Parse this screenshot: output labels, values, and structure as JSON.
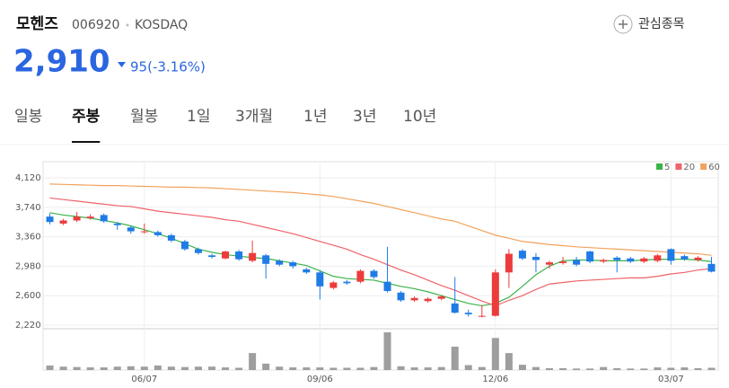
{
  "header": {
    "name": "모헨즈",
    "code": "006920",
    "market": "KOSDAQ",
    "price": "2,910",
    "change": "95(-3.16%)",
    "watch_button": "관심종목"
  },
  "tabs": {
    "items": [
      "일봉",
      "주봉",
      "월봉",
      "1일",
      "3개월",
      "1년",
      "3년",
      "10년"
    ],
    "selected": 1
  },
  "chart_data": {
    "type": "candlestick",
    "categories": [
      null,
      null,
      null,
      null,
      null,
      null,
      null,
      "06/07",
      null,
      null,
      null,
      null,
      null,
      null,
      null,
      null,
      null,
      null,
      null,
      null,
      "09/06",
      null,
      null,
      null,
      null,
      null,
      null,
      null,
      null,
      null,
      null,
      null,
      null,
      "12/06",
      null,
      null,
      null,
      null,
      null,
      null,
      null,
      null,
      null,
      null,
      null,
      null,
      "03/07",
      null,
      null,
      null
    ],
    "candles": [
      [
        3620,
        3660,
        3520,
        3550
      ],
      [
        3530,
        3590,
        3510,
        3570
      ],
      [
        3570,
        3680,
        3550,
        3620
      ],
      [
        3600,
        3650,
        3580,
        3620
      ],
      [
        3640,
        3660,
        3540,
        3560
      ],
      [
        3530,
        3550,
        3450,
        3510
      ],
      [
        3480,
        3500,
        3400,
        3430
      ],
      [
        3420,
        3530,
        3400,
        3430
      ],
      [
        3420,
        3440,
        3360,
        3380
      ],
      [
        3380,
        3400,
        3290,
        3310
      ],
      [
        3300,
        3320,
        3180,
        3200
      ],
      [
        3200,
        3220,
        3130,
        3150
      ],
      [
        3120,
        3140,
        3080,
        3100
      ],
      [
        3080,
        3180,
        3070,
        3170
      ],
      [
        3170,
        3190,
        3050,
        3070
      ],
      [
        3050,
        3310,
        3030,
        3150
      ],
      [
        3120,
        3140,
        2820,
        3010
      ],
      [
        3050,
        3070,
        2980,
        3000
      ],
      [
        3030,
        3050,
        2950,
        2980
      ],
      [
        2940,
        2960,
        2880,
        2900
      ],
      [
        2900,
        2930,
        2550,
        2720
      ],
      [
        2700,
        2790,
        2680,
        2770
      ],
      [
        2780,
        2800,
        2740,
        2760
      ],
      [
        2780,
        2940,
        2760,
        2920
      ],
      [
        2920,
        2940,
        2820,
        2840
      ],
      [
        2780,
        3230,
        2640,
        2660
      ],
      [
        2640,
        2660,
        2520,
        2540
      ],
      [
        2540,
        2590,
        2520,
        2570
      ],
      [
        2530,
        2580,
        2510,
        2560
      ],
      [
        2560,
        2610,
        2540,
        2590
      ],
      [
        2500,
        2840,
        2370,
        2380
      ],
      [
        2380,
        2420,
        2330,
        2360
      ],
      [
        2330,
        2480,
        2320,
        2340
      ],
      [
        2340,
        2940,
        2330,
        2900
      ],
      [
        2900,
        3200,
        2700,
        3140
      ],
      [
        3180,
        3200,
        3060,
        3080
      ],
      [
        3100,
        3150,
        2900,
        3060
      ],
      [
        3000,
        3050,
        2950,
        3030
      ],
      [
        3020,
        3100,
        3000,
        3040
      ],
      [
        3060,
        3100,
        2980,
        3000
      ],
      [
        3170,
        3180,
        3020,
        3040
      ],
      [
        3040,
        3080,
        3020,
        3060
      ],
      [
        3090,
        3110,
        2900,
        3060
      ],
      [
        3080,
        3100,
        3020,
        3040
      ],
      [
        3040,
        3100,
        3020,
        3080
      ],
      [
        3050,
        3140,
        3030,
        3120
      ],
      [
        3200,
        3210,
        3000,
        3050
      ],
      [
        3110,
        3130,
        3050,
        3070
      ],
      [
        3060,
        3110,
        3040,
        3090
      ],
      [
        3010,
        3100,
        2900,
        2910
      ]
    ],
    "up_color": "#ec3b3b",
    "down_color": "#1f7be6",
    "volume": [
      12,
      9,
      8,
      7,
      7,
      9,
      10,
      9,
      12,
      9,
      8,
      9,
      9,
      7,
      6,
      45,
      17,
      9,
      7,
      7,
      7,
      6,
      6,
      6,
      8,
      100,
      10,
      7,
      7,
      8,
      62,
      13,
      8,
      85,
      45,
      14,
      8,
      5,
      5,
      4,
      4,
      8,
      5,
      4,
      4,
      7,
      6,
      7,
      5,
      6
    ],
    "volume_color": "#9e9e9e",
    "vlim": [
      0,
      100
    ],
    "ylim": [
      2220,
      4120
    ],
    "yticks": [
      {
        "value": 2220,
        "label": "2,220"
      },
      {
        "value": 2600,
        "label": "2,600"
      },
      {
        "value": 2980,
        "label": "2,980"
      },
      {
        "value": 3360,
        "label": "3,360"
      },
      {
        "value": 3740,
        "label": "3,740"
      },
      {
        "value": 4120,
        "label": "4,120"
      }
    ],
    "grid": true,
    "series": [
      {
        "name": "5",
        "color": "#3cb34a",
        "values": [
          3670,
          3640,
          3620,
          3600,
          3570,
          3540,
          3500,
          3450,
          3400,
          3340,
          3270,
          3200,
          3160,
          3130,
          3110,
          3090,
          3080,
          3050,
          3020,
          2990,
          2920,
          2850,
          2820,
          2810,
          2800,
          2760,
          2720,
          2690,
          2650,
          2600,
          2550,
          2500,
          2470,
          2500,
          2580,
          2720,
          2870,
          2980,
          3050,
          3060,
          3060,
          3050,
          3050,
          3050,
          3060,
          3070,
          3070,
          3070,
          3060,
          3040
        ]
      },
      {
        "name": "20",
        "color": "#f0626a",
        "values": [
          3860,
          3840,
          3820,
          3800,
          3780,
          3760,
          3750,
          3720,
          3690,
          3670,
          3650,
          3630,
          3610,
          3580,
          3560,
          3520,
          3480,
          3440,
          3400,
          3350,
          3300,
          3250,
          3200,
          3130,
          3070,
          3000,
          2930,
          2870,
          2800,
          2730,
          2670,
          2600,
          2530,
          2470,
          2540,
          2600,
          2680,
          2750,
          2770,
          2790,
          2800,
          2810,
          2820,
          2830,
          2830,
          2850,
          2880,
          2900,
          2930,
          2950
        ]
      },
      {
        "name": "60",
        "color": "#f2a25c",
        "values": [
          4040,
          4035,
          4030,
          4025,
          4020,
          4020,
          4015,
          4010,
          4005,
          4000,
          4000,
          3995,
          3990,
          3980,
          3970,
          3960,
          3950,
          3940,
          3930,
          3915,
          3900,
          3880,
          3850,
          3820,
          3790,
          3750,
          3710,
          3670,
          3630,
          3590,
          3560,
          3500,
          3440,
          3380,
          3340,
          3300,
          3280,
          3260,
          3245,
          3230,
          3220,
          3210,
          3200,
          3190,
          3180,
          3170,
          3160,
          3150,
          3140,
          3120
        ]
      }
    ]
  }
}
